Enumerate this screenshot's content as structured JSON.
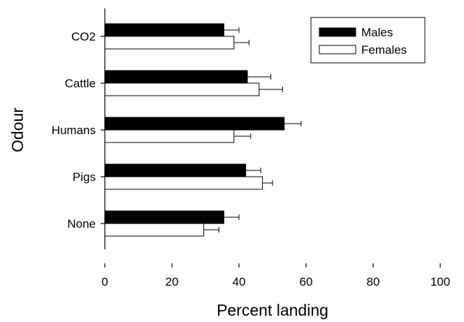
{
  "chart_data": {
    "type": "bar",
    "orientation": "horizontal",
    "categories": [
      "CO2",
      "Cattle",
      "Humans",
      "Pigs",
      "None"
    ],
    "series": [
      {
        "name": "Males",
        "values": [
          35.5,
          42.5,
          53.5,
          42.0,
          35.5
        ],
        "errors": [
          4.5,
          7.0,
          5.0,
          4.5,
          4.5
        ],
        "color": "#000000"
      },
      {
        "name": "Females",
        "values": [
          38.5,
          46.0,
          38.5,
          47.0,
          29.5
        ],
        "errors": [
          4.5,
          7.0,
          5.0,
          3.0,
          4.5
        ],
        "color": "#ffffff"
      }
    ],
    "xlabel": "Percent landing",
    "ylabel": "Odour",
    "xlim": [
      0,
      100
    ],
    "xticks": [
      0,
      20,
      40,
      60,
      80,
      100
    ],
    "legend_position": "top-right",
    "grid": false
  }
}
